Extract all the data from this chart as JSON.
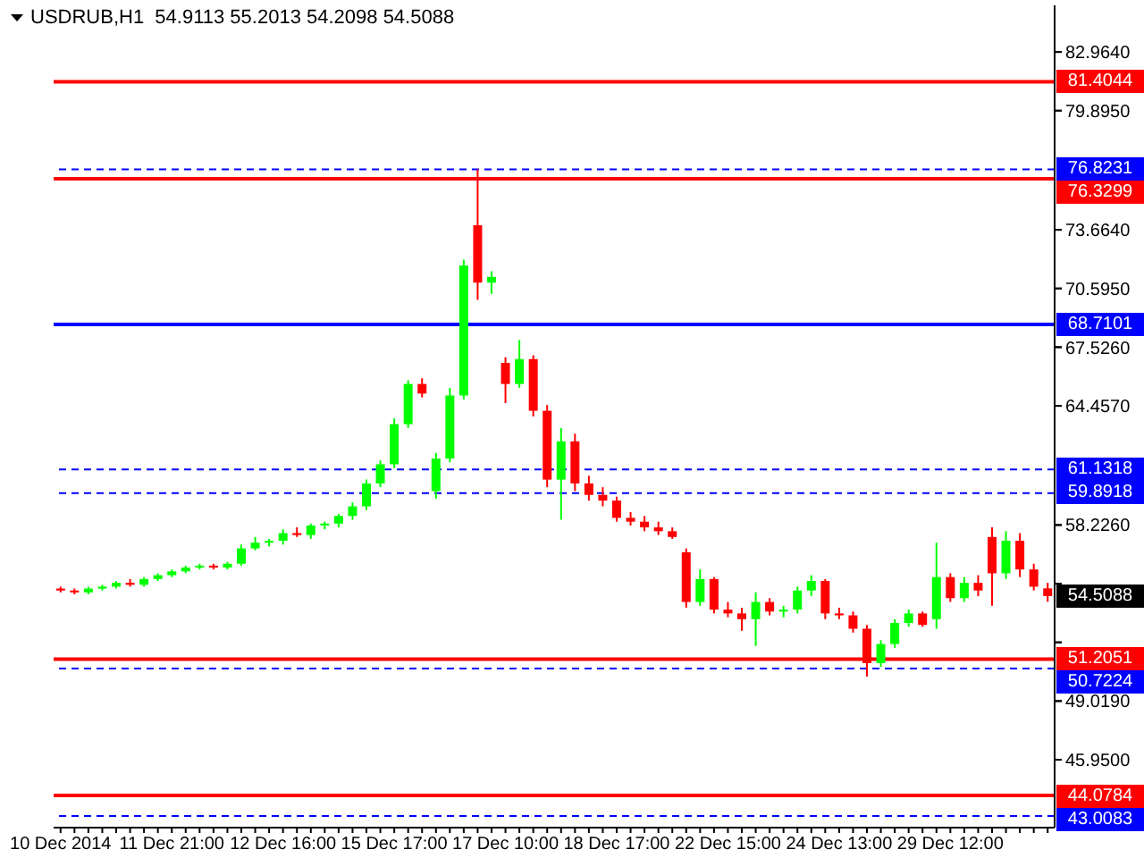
{
  "chart_data": {
    "type": "candlestick",
    "title": "USDRUB,H1  54.9113 55.2013 54.2098 54.5088",
    "categories": [
      "10 Dec 2014",
      null,
      null,
      null,
      null,
      null,
      null,
      null,
      "11 Dec 21:00",
      null,
      null,
      null,
      null,
      null,
      null,
      null,
      "12 Dec 16:00",
      null,
      null,
      null,
      null,
      null,
      null,
      null,
      "15 Dec 17:00",
      null,
      null,
      null,
      null,
      null,
      null,
      null,
      "17 Dec 10:00",
      null,
      null,
      null,
      null,
      null,
      null,
      null,
      "18 Dec 17:00",
      null,
      null,
      null,
      null,
      null,
      null,
      null,
      "22 Dec 15:00",
      null,
      null,
      null,
      null,
      null,
      null,
      null,
      "24 Dec 13:00",
      null,
      null,
      null,
      null,
      null,
      null,
      null,
      "29 Dec 12:00",
      null,
      null,
      null,
      null,
      null,
      null,
      null
    ],
    "ohlc": [
      [
        54.9,
        55.0,
        54.7,
        54.8
      ],
      [
        54.8,
        54.9,
        54.6,
        54.7
      ],
      [
        54.7,
        55.0,
        54.6,
        54.9
      ],
      [
        54.9,
        55.1,
        54.8,
        55.0
      ],
      [
        55.0,
        55.3,
        54.9,
        55.2
      ],
      [
        55.2,
        55.4,
        55.0,
        55.1
      ],
      [
        55.1,
        55.5,
        55.0,
        55.4
      ],
      [
        55.4,
        55.7,
        55.3,
        55.6
      ],
      [
        55.6,
        55.9,
        55.5,
        55.8
      ],
      [
        55.8,
        56.1,
        55.7,
        56.0
      ],
      [
        56.0,
        56.2,
        55.9,
        56.1
      ],
      [
        56.1,
        56.2,
        55.9,
        56.0
      ],
      [
        56.0,
        56.3,
        55.9,
        56.2
      ],
      [
        56.2,
        57.2,
        56.1,
        57.0
      ],
      [
        57.0,
        57.6,
        56.9,
        57.3
      ],
      [
        57.3,
        57.5,
        57.1,
        57.4
      ],
      [
        57.4,
        58.0,
        57.2,
        57.8
      ],
      [
        57.8,
        58.1,
        57.6,
        57.7
      ],
      [
        57.7,
        58.3,
        57.5,
        58.2
      ],
      [
        58.2,
        58.4,
        58.0,
        58.3
      ],
      [
        58.3,
        58.8,
        58.1,
        58.7
      ],
      [
        58.7,
        59.4,
        58.5,
        59.2
      ],
      [
        59.2,
        60.6,
        59.0,
        60.4
      ],
      [
        60.4,
        61.6,
        60.2,
        61.4
      ],
      [
        61.4,
        63.8,
        61.2,
        63.5
      ],
      [
        63.5,
        65.8,
        63.3,
        65.6
      ],
      [
        65.6,
        65.9,
        64.9,
        65.1
      ],
      [
        60.0,
        62.0,
        59.6,
        61.7
      ],
      [
        61.7,
        65.4,
        61.5,
        65.0
      ],
      [
        65.0,
        72.1,
        64.8,
        71.8
      ],
      [
        73.9,
        76.82,
        70.0,
        70.9
      ],
      [
        70.9,
        71.5,
        70.3,
        71.2
      ],
      [
        66.7,
        67.0,
        64.6,
        65.6
      ],
      [
        65.6,
        67.9,
        65.4,
        66.9
      ],
      [
        66.9,
        67.1,
        63.9,
        64.2
      ],
      [
        64.2,
        64.5,
        60.2,
        60.6
      ],
      [
        60.6,
        63.3,
        58.5,
        62.6
      ],
      [
        62.6,
        63.0,
        60.0,
        60.4
      ],
      [
        60.4,
        60.8,
        59.5,
        59.8
      ],
      [
        59.8,
        60.2,
        59.2,
        59.5
      ],
      [
        59.5,
        59.7,
        58.4,
        58.6
      ],
      [
        58.6,
        58.9,
        58.2,
        58.4
      ],
      [
        58.4,
        58.7,
        57.9,
        58.1
      ],
      [
        58.1,
        58.4,
        57.7,
        57.9
      ],
      [
        57.9,
        58.1,
        57.5,
        57.6
      ],
      [
        56.8,
        57.0,
        53.9,
        54.2
      ],
      [
        54.2,
        55.9,
        54.0,
        55.4
      ],
      [
        55.4,
        55.5,
        53.6,
        53.8
      ],
      [
        53.8,
        54.2,
        53.4,
        53.6
      ],
      [
        53.6,
        53.9,
        52.7,
        53.3
      ],
      [
        53.3,
        54.7,
        51.9,
        54.2
      ],
      [
        54.2,
        54.4,
        53.5,
        53.7
      ],
      [
        53.7,
        54.0,
        53.4,
        53.8
      ],
      [
        53.8,
        55.0,
        53.6,
        54.8
      ],
      [
        54.8,
        55.6,
        54.5,
        55.3
      ],
      [
        55.3,
        55.4,
        53.3,
        53.6
      ],
      [
        53.6,
        53.9,
        53.3,
        53.5
      ],
      [
        53.5,
        53.7,
        52.6,
        52.8
      ],
      [
        52.8,
        53.0,
        50.3,
        51.0
      ],
      [
        51.0,
        52.2,
        50.8,
        52.0
      ],
      [
        52.0,
        53.3,
        51.8,
        53.1
      ],
      [
        53.1,
        53.8,
        52.9,
        53.6
      ],
      [
        53.6,
        53.7,
        52.9,
        53.0
      ],
      [
        53.3,
        57.3,
        52.8,
        55.5
      ],
      [
        55.5,
        55.7,
        54.2,
        54.4
      ],
      [
        54.4,
        55.5,
        54.2,
        55.2
      ],
      [
        55.2,
        55.6,
        54.5,
        54.8
      ],
      [
        57.6,
        58.1,
        54.0,
        55.7
      ],
      [
        55.7,
        57.9,
        55.4,
        57.4
      ],
      [
        57.4,
        57.8,
        55.5,
        55.9
      ],
      [
        55.9,
        56.2,
        54.8,
        55.0
      ],
      [
        54.9113,
        55.2013,
        54.2098,
        54.5088
      ]
    ],
    "colors": [
      "#ff0000",
      "#ff0000",
      "#00ff00",
      "#00ff00",
      "#00ff00",
      "#ff0000",
      "#00ff00",
      "#00ff00",
      "#00ff00",
      "#00ff00",
      "#00ff00",
      "#ff0000",
      "#00ff00",
      "#00ff00",
      "#00ff00",
      "#00ff00",
      "#00ff00",
      "#ff0000",
      "#00ff00",
      "#00ff00",
      "#00ff00",
      "#00ff00",
      "#00ff00",
      "#00ff00",
      "#00ff00",
      "#00ff00",
      "#ff0000",
      "#00ff00",
      "#00ff00",
      "#00ff00",
      "#ff0000",
      "#00ff00",
      "#ff0000",
      "#00ff00",
      "#ff0000",
      "#ff0000",
      "#00ff00",
      "#ff0000",
      "#ff0000",
      "#ff0000",
      "#ff0000",
      "#ff0000",
      "#ff0000",
      "#ff0000",
      "#ff0000",
      "#ff0000",
      "#00ff00",
      "#ff0000",
      "#ff0000",
      "#ff0000",
      "#00ff00",
      "#ff0000",
      "#00ff00",
      "#00ff00",
      "#00ff00",
      "#ff0000",
      "#ff0000",
      "#ff0000",
      "#ff0000",
      "#00ff00",
      "#00ff00",
      "#00ff00",
      "#ff0000",
      "#00ff00",
      "#ff0000",
      "#00ff00",
      "#ff0000",
      "#ff0000",
      "#00ff00",
      "#ff0000",
      "#ff0000",
      "#ff0000"
    ],
    "ylim": [
      42.4,
      85.4
    ],
    "yticks": [
      {
        "value": 82.964,
        "label": "82.9640"
      },
      {
        "value": 79.895,
        "label": "79.8950"
      },
      {
        "value": 73.664,
        "label": "73.6640"
      },
      {
        "value": 70.595,
        "label": "70.5950"
      },
      {
        "value": 67.526,
        "label": "67.5260"
      },
      {
        "value": 64.457,
        "label": "64.4570"
      },
      {
        "value": 58.226,
        "label": "58.2260"
      },
      {
        "value": 55.157,
        "label": null
      },
      {
        "value": 52.088,
        "label": null
      },
      {
        "value": 49.019,
        "label": "49.0190"
      },
      {
        "value": 45.95,
        "label": "45.9500"
      }
    ],
    "ref_lines": [
      {
        "axis": "y",
        "value": 81.4044,
        "label": "81.4044",
        "color": "#ff0000",
        "line_style": "solid"
      },
      {
        "axis": "y",
        "value": 76.8231,
        "label": "76.8231",
        "color": "#0000ff",
        "line_style": "dashed"
      },
      {
        "axis": "y",
        "value": 76.3299,
        "label": "76.3299",
        "color": "#ff0000",
        "line_style": "solid"
      },
      {
        "axis": "y",
        "value": 68.7101,
        "label": "68.7101",
        "color": "#0000ff",
        "line_style": "solid"
      },
      {
        "axis": "y",
        "value": 61.1318,
        "label": "61.1318",
        "color": "#0000ff",
        "line_style": "dashed"
      },
      {
        "axis": "y",
        "value": 59.8918,
        "label": "59.8918",
        "color": "#0000ff",
        "line_style": "dashed"
      },
      {
        "axis": "y",
        "value": 51.2051,
        "label": "51.2051",
        "color": "#ff0000",
        "line_style": "solid"
      },
      {
        "axis": "y",
        "value": 50.7224,
        "label": "50.7224",
        "color": "#0000ff",
        "line_style": "dashed"
      },
      {
        "axis": "y",
        "value": 44.0784,
        "label": "44.0784",
        "color": "#ff0000",
        "line_style": "solid"
      },
      {
        "axis": "y",
        "value": 43.0083,
        "label": "43.0083",
        "color": "#0000ff",
        "line_style": "dashed"
      }
    ],
    "annotations": [
      "54.5088"
    ]
  }
}
